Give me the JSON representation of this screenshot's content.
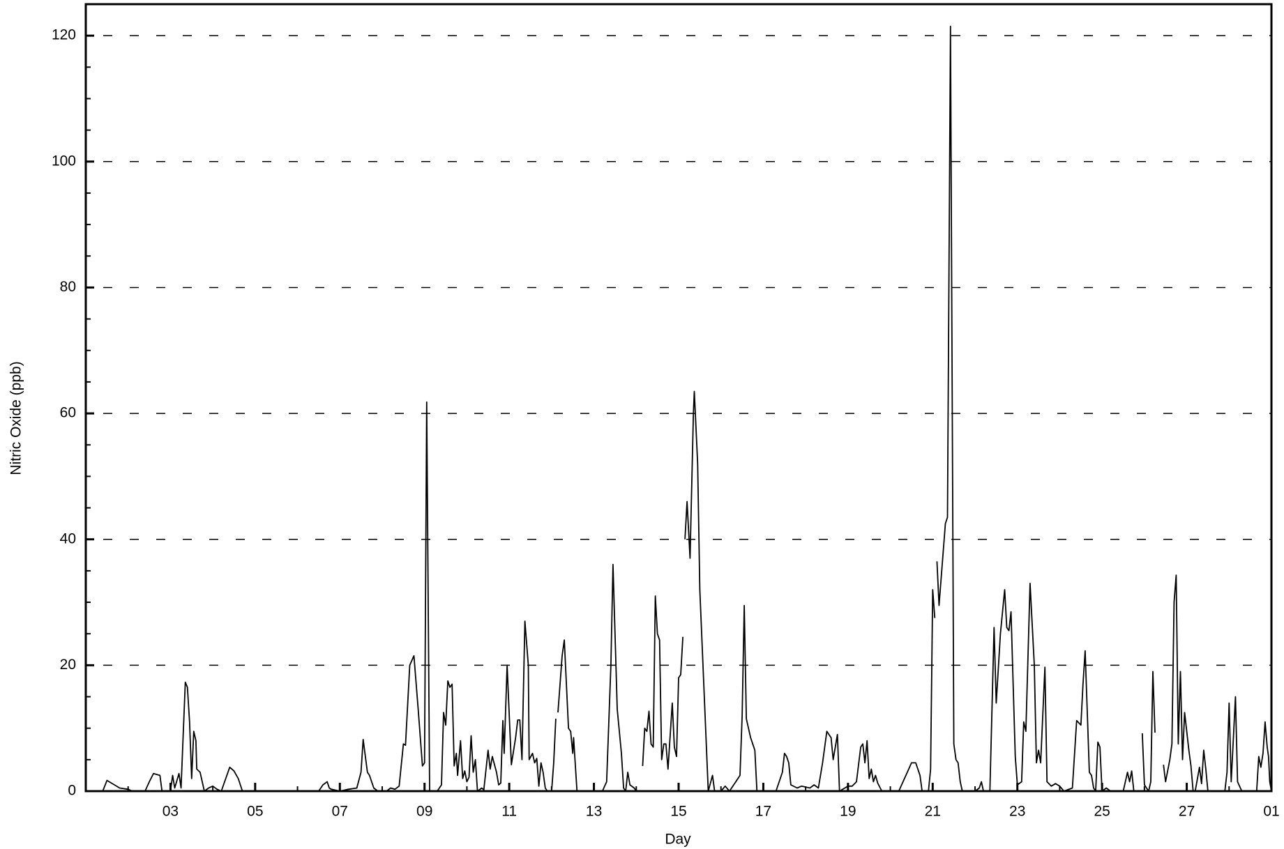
{
  "chart_data": {
    "type": "line",
    "xlabel": "Day",
    "ylabel": "Nitric Oxide (ppb)",
    "color": "#000000",
    "grid": true,
    "xlim": [
      0,
      28
    ],
    "ylim": [
      0,
      125
    ],
    "xticks": [
      {
        "value": 2,
        "label": "03"
      },
      {
        "value": 4,
        "label": "05"
      },
      {
        "value": 6,
        "label": "07"
      },
      {
        "value": 8,
        "label": "09"
      },
      {
        "value": 10,
        "label": "11"
      },
      {
        "value": 12,
        "label": "13"
      },
      {
        "value": 14,
        "label": "15"
      },
      {
        "value": 16,
        "label": "17"
      },
      {
        "value": 18,
        "label": "19"
      },
      {
        "value": 20,
        "label": "21"
      },
      {
        "value": 22,
        "label": "23"
      },
      {
        "value": 24,
        "label": "25"
      },
      {
        "value": 26,
        "label": "27"
      },
      {
        "value": 28,
        "label": "01"
      }
    ],
    "yticks": [
      0,
      20,
      40,
      60,
      80,
      100,
      120
    ],
    "x": [
      0,
      0.4,
      0.5,
      0.8,
      1.0,
      1.1,
      1.4,
      1.5,
      1.6,
      1.75,
      1.8,
      2.0,
      2.05,
      2.1,
      2.2,
      2.25,
      2.35,
      2.4,
      2.45,
      2.5,
      2.55,
      2.6,
      2.62,
      2.7,
      2.8,
      2.9,
      3.0,
      3.1,
      3.2,
      3.4,
      3.5,
      3.6,
      3.7,
      5.5,
      5.6,
      5.7,
      5.75,
      5.8,
      6.0,
      6.2,
      6.4,
      6.5,
      6.55,
      6.65,
      6.7,
      6.8,
      6.9,
      7.1,
      7.2,
      7.3,
      7.4,
      7.5,
      7.55,
      7.65,
      7.75,
      7.85,
      7.95,
      8.0,
      8.05,
      8.12,
      8.3,
      8.4,
      8.45,
      8.5,
      8.55,
      8.6,
      8.65,
      8.7,
      8.75,
      8.78,
      8.85,
      8.9,
      8.95,
      9.0,
      9.05,
      9.1,
      9.15,
      9.2,
      9.25,
      9.35,
      9.4,
      9.5,
      9.55,
      9.6,
      9.7,
      9.75,
      9.8,
      9.85,
      9.88,
      9.95,
      10.05,
      10.15,
      10.2,
      10.25,
      10.3,
      10.37,
      10.45,
      10.47,
      10.55,
      10.6,
      10.65,
      10.7,
      10.75,
      10.8,
      10.85,
      10.9,
      11.0,
      11.05,
      11.1,
      11.12,
      11.15,
      11.25,
      11.3,
      11.35,
      11.4,
      11.45,
      11.5,
      11.52,
      11.6,
      12.2,
      12.3,
      12.4,
      12.45,
      12.55,
      12.65,
      12.7,
      12.75,
      12.8,
      12.85,
      12.95,
      13.0,
      13.08,
      13.15,
      13.2,
      13.25,
      13.3,
      13.35,
      13.4,
      13.45,
      13.5,
      13.55,
      13.6,
      13.65,
      13.7,
      13.75,
      13.85,
      13.9,
      13.95,
      14.0,
      14.05,
      14.1,
      14.12,
      14.15,
      14.2,
      14.27,
      14.35,
      14.37,
      14.45,
      14.5,
      14.7,
      14.8,
      14.85,
      15.0,
      15.1,
      15.2,
      15.35,
      15.45,
      15.5,
      15.55,
      15.6,
      15.7,
      15.8,
      15.85,
      16.3,
      16.45,
      16.5,
      16.55,
      16.6,
      16.65,
      16.8,
      16.9,
      17.1,
      17.2,
      17.3,
      17.4,
      17.5,
      17.6,
      17.65,
      17.75,
      17.8,
      18.0,
      18.1,
      18.2,
      18.3,
      18.35,
      18.4,
      18.45,
      18.5,
      18.55,
      18.6,
      18.65,
      18.7,
      18.8,
      19.2,
      19.4,
      19.5,
      19.6,
      19.7,
      19.75,
      19.9,
      19.95,
      20.0,
      20.05,
      20.08,
      20.1,
      20.15,
      20.3,
      20.35,
      20.42,
      20.5,
      20.55,
      20.6,
      20.65,
      20.7,
      21.0,
      21.1,
      21.15,
      21.2,
      21.35,
      21.45,
      21.5,
      21.6,
      21.7,
      21.75,
      21.8,
      21.85,
      21.95,
      22.0,
      22.1,
      22.15,
      22.2,
      22.3,
      22.4,
      22.45,
      22.5,
      22.55,
      22.65,
      22.7,
      22.8,
      22.9,
      23.0,
      23.1,
      23.3,
      23.4,
      23.5,
      23.55,
      23.6,
      23.7,
      23.75,
      23.8,
      23.85,
      23.9,
      23.95,
      24.0,
      24.1,
      24.2,
      24.5,
      24.6,
      24.65,
      24.7,
      24.75,
      24.85,
      24.95,
      25.0,
      25.05,
      25.1,
      25.15,
      25.2,
      25.25,
      25.35,
      25.45,
      25.5,
      25.6,
      25.65,
      25.7,
      25.75,
      25.8,
      25.85,
      25.9,
      25.95,
      26.05,
      26.1,
      26.15,
      26.2,
      26.3,
      26.35,
      26.4,
      26.45,
      26.5,
      26.7,
      26.9,
      26.95,
      27.0,
      27.05,
      27.15,
      27.2,
      27.3,
      27.55,
      27.65,
      27.7,
      27.75,
      27.8,
      27.85,
      27.9,
      27.93,
      27.96,
      28.0
    ],
    "values": [
      0,
      0,
      1.7,
      0.5,
      0.3,
      0,
      0,
      1.5,
      2.8,
      2.5,
      0,
      0,
      2.5,
      0.5,
      2.8,
      0.5,
      17.3,
      16.5,
      11,
      2,
      9.5,
      8,
      3.5,
      3,
      0,
      0.5,
      0.8,
      0.3,
      0,
      3.8,
      3.2,
      2,
      0,
      0,
      1,
      1.5,
      0.5,
      0.3,
      0,
      0.3,
      0.5,
      3,
      8.2,
      3,
      2.5,
      0.5,
      0,
      0,
      0.5,
      0.3,
      0.8,
      7.5,
      7.3,
      20,
      21.5,
      13,
      4,
      4.5,
      61.8,
      0,
      0,
      1,
      12.5,
      10.5,
      17.5,
      16.5,
      17,
      4,
      6,
      2.5,
      8,
      2,
      3.2,
      1.5,
      2.2,
      8.8,
      3,
      5,
      0,
      0.5,
      0.2,
      6.5,
      3.5,
      5.5,
      3,
      1,
      1.3,
      11.2,
      6,
      20,
      4.2,
      8.5,
      11.3,
      11.3,
      5,
      27,
      20,
      5,
      6,
      4.5,
      5.2,
      0.8,
      4.5,
      3,
      0.5,
      0,
      0,
      4.5,
      11.5,
      null,
      12.5,
      21.5,
      24,
      17,
      10,
      9.5,
      6,
      8.5,
      0,
      0,
      1.5,
      20,
      36,
      13,
      6,
      0.5,
      0,
      3,
      1,
      0.5,
      0,
      null,
      4,
      10,
      9.5,
      12.7,
      7.5,
      7,
      31,
      25,
      24,
      5,
      7.5,
      7.5,
      3.5,
      14,
      7,
      5.5,
      18,
      18.5,
      24.5,
      null,
      40,
      46,
      37,
      60,
      63.5,
      52,
      32,
      0,
      2.5,
      0,
      0,
      0.8,
      0,
      1.5,
      2.5,
      12,
      29.5,
      11.5,
      8.5,
      6.5,
      0,
      0,
      3,
      6,
      5.5,
      4.5,
      1,
      0.5,
      0.8,
      0.5,
      1,
      0.5,
      4.5,
      9.5,
      8.5,
      5,
      9,
      0,
      0.8,
      0.8,
      1.5,
      7,
      7.5,
      4.5,
      8,
      2,
      3.5,
      1.5,
      2.5,
      1.3,
      0,
      0,
      3,
      4.5,
      4.5,
      2.5,
      0,
      0,
      3.5,
      32,
      27.5,
      null,
      36.5,
      29.5,
      42.5,
      43.5,
      121.5,
      7.5,
      5,
      4.5,
      1.5,
      0,
      0,
      0.5,
      1.5,
      0,
      0,
      26,
      14,
      25,
      32,
      26,
      25.5,
      28.5,
      5.5,
      1,
      1.5,
      11,
      9.5,
      33,
      20,
      4.5,
      6.5,
      4.5,
      19.7,
      1.5,
      0.8,
      1.2,
      0.8,
      0,
      0.5,
      11.2,
      10.5,
      17,
      22.3,
      3,
      2.5,
      0.5,
      0,
      7.8,
      7,
      0,
      0.5,
      0,
      0,
      3,
      1.5,
      3.2,
      0,
      null,
      9.2,
      1,
      0.5,
      0,
      1.5,
      19,
      9.3,
      null,
      4.2,
      1.5,
      5,
      7.5,
      30,
      34.3,
      7.5,
      19,
      5,
      12.5,
      6.5,
      4,
      0,
      0,
      3.8,
      1.2,
      6.5,
      3.5,
      0,
      null,
      0,
      3,
      14,
      1.5,
      15,
      1.5,
      0,
      0,
      0,
      5.5,
      3.8,
      6,
      11,
      7,
      5.5,
      1.5,
      0
    ]
  }
}
